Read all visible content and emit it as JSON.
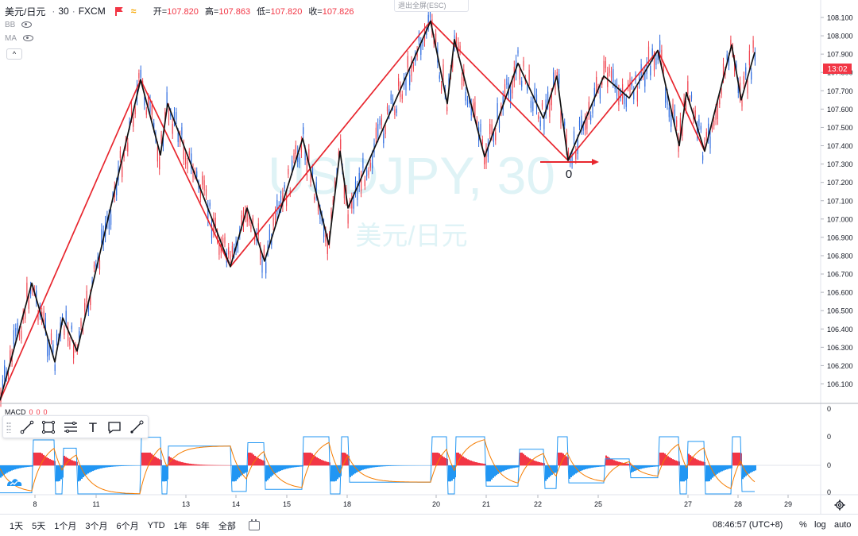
{
  "header": {
    "symbol": "美元/日元",
    "interval": "30",
    "source": "FXCM",
    "ohlc": [
      {
        "label": "开=",
        "value": "107.820"
      },
      {
        "label": "高=",
        "value": "107.863"
      },
      {
        "label": "低=",
        "value": "107.820"
      },
      {
        "label": "收=",
        "value": "107.826"
      }
    ]
  },
  "exit_button": "退出全屏(ESC)",
  "indicators": [
    {
      "name": "BB"
    },
    {
      "name": "MA"
    }
  ],
  "collapse_glyph": "^",
  "watermark": {
    "line1": "USDJPY, 30",
    "line2": "美元/日元"
  },
  "colors": {
    "zigzag_red": "#e8262e",
    "zigzag_black": "#111111",
    "candle_up": "#2f6ce0",
    "candle_down": "#f0424e",
    "watermark": "#dff3f6",
    "macd_pos": "#f23645",
    "macd_neg": "#2196f3",
    "macd_line": "#2196f3",
    "signal_line": "#f57c00",
    "price_label_bg": "#f23645"
  },
  "annotation": {
    "label": "0"
  },
  "price_axis": {
    "ticks": [
      "106.100",
      "106.200",
      "106.300",
      "106.400",
      "106.500",
      "106.600",
      "106.700",
      "106.800",
      "106.900",
      "107.000",
      "107.100",
      "107.200",
      "107.300",
      "107.400",
      "107.500",
      "107.600",
      "107.700",
      "107.800",
      "107.900",
      "108.000",
      "108.100"
    ],
    "current_price_label": "13:02"
  },
  "macd": {
    "label": "MACD",
    "values": [
      "0",
      "0",
      "0"
    ],
    "axis_ticks": [
      "0",
      "0",
      "0",
      "0"
    ]
  },
  "time_axis": {
    "ticks": [
      "8",
      "11",
      "13",
      "14",
      "15",
      "18",
      "20",
      "21",
      "22",
      "25",
      "27",
      "28",
      "29"
    ]
  },
  "toolbar": {
    "tools": [
      {
        "name": "trend-line-tool"
      },
      {
        "name": "rectangle-tool"
      },
      {
        "name": "fib-tool"
      },
      {
        "name": "text-tool"
      },
      {
        "name": "callout-tool"
      },
      {
        "name": "brush-tool"
      }
    ],
    "text_tool_glyph": "T"
  },
  "bottom_bar": {
    "ranges": [
      "1天",
      "5天",
      "1个月",
      "3个月",
      "6个月",
      "YTD",
      "1年",
      "5年",
      "全部"
    ],
    "clock": "08:46:57 (UTC+8)",
    "percent": "%",
    "log": "log",
    "auto": "auto"
  },
  "chart_data": {
    "type": "line",
    "title": "",
    "xlabel": "",
    "ylabel": "",
    "ylim": [
      106.0,
      108.18
    ],
    "x_ticks": [
      "8",
      "11",
      "13",
      "14",
      "15",
      "18",
      "20",
      "21",
      "22",
      "25",
      "27",
      "28",
      "29"
    ],
    "series": [
      {
        "name": "",
        "color": "#e8262e",
        "points": [
          {
            "x": "7",
            "y": 106.01
          },
          {
            "x": "12",
            "y": 107.76
          },
          {
            "x": "14",
            "y": 106.74
          },
          {
            "x": "20",
            "y": 108.08
          },
          {
            "x": "22",
            "y": 107.32
          },
          {
            "x": "26",
            "y": 107.92
          },
          {
            "x": "27",
            "y": 107.37
          }
        ]
      },
      {
        "name": "",
        "color": "#111111",
        "points": [
          {
            "x": "7",
            "y": 106.01
          },
          {
            "x": "8",
            "y": 106.65
          },
          {
            "x": "8",
            "y": 106.22
          },
          {
            "x": "9",
            "y": 106.46
          },
          {
            "x": "10",
            "y": 106.28
          },
          {
            "x": "12",
            "y": 107.76
          },
          {
            "x": "12",
            "y": 107.35
          },
          {
            "x": "13",
            "y": 107.63
          },
          {
            "x": "14",
            "y": 106.74
          },
          {
            "x": "14",
            "y": 107.06
          },
          {
            "x": "14",
            "y": 106.77
          },
          {
            "x": "15",
            "y": 107.44
          },
          {
            "x": "17",
            "y": 106.86
          },
          {
            "x": "17",
            "y": 107.37
          },
          {
            "x": "18",
            "y": 107.06
          },
          {
            "x": "20",
            "y": 108.08
          },
          {
            "x": "20",
            "y": 107.63
          },
          {
            "x": "20",
            "y": 107.98
          },
          {
            "x": "21",
            "y": 107.34
          },
          {
            "x": "21",
            "y": 107.85
          },
          {
            "x": "22",
            "y": 107.55
          },
          {
            "x": "22",
            "y": 107.78
          },
          {
            "x": "22",
            "y": 107.32
          },
          {
            "x": "23",
            "y": 107.78
          },
          {
            "x": "25",
            "y": 107.66
          },
          {
            "x": "26",
            "y": 107.92
          },
          {
            "x": "27",
            "y": 107.4
          },
          {
            "x": "27",
            "y": 107.69
          },
          {
            "x": "27",
            "y": 107.37
          },
          {
            "x": "28",
            "y": 107.95
          },
          {
            "x": "28",
            "y": 107.65
          },
          {
            "x": "28",
            "y": 107.91
          }
        ]
      }
    ],
    "annotations": [
      {
        "text": "0",
        "x": "22",
        "y": 107.31
      }
    ],
    "grid": false,
    "legend": "top-left"
  }
}
